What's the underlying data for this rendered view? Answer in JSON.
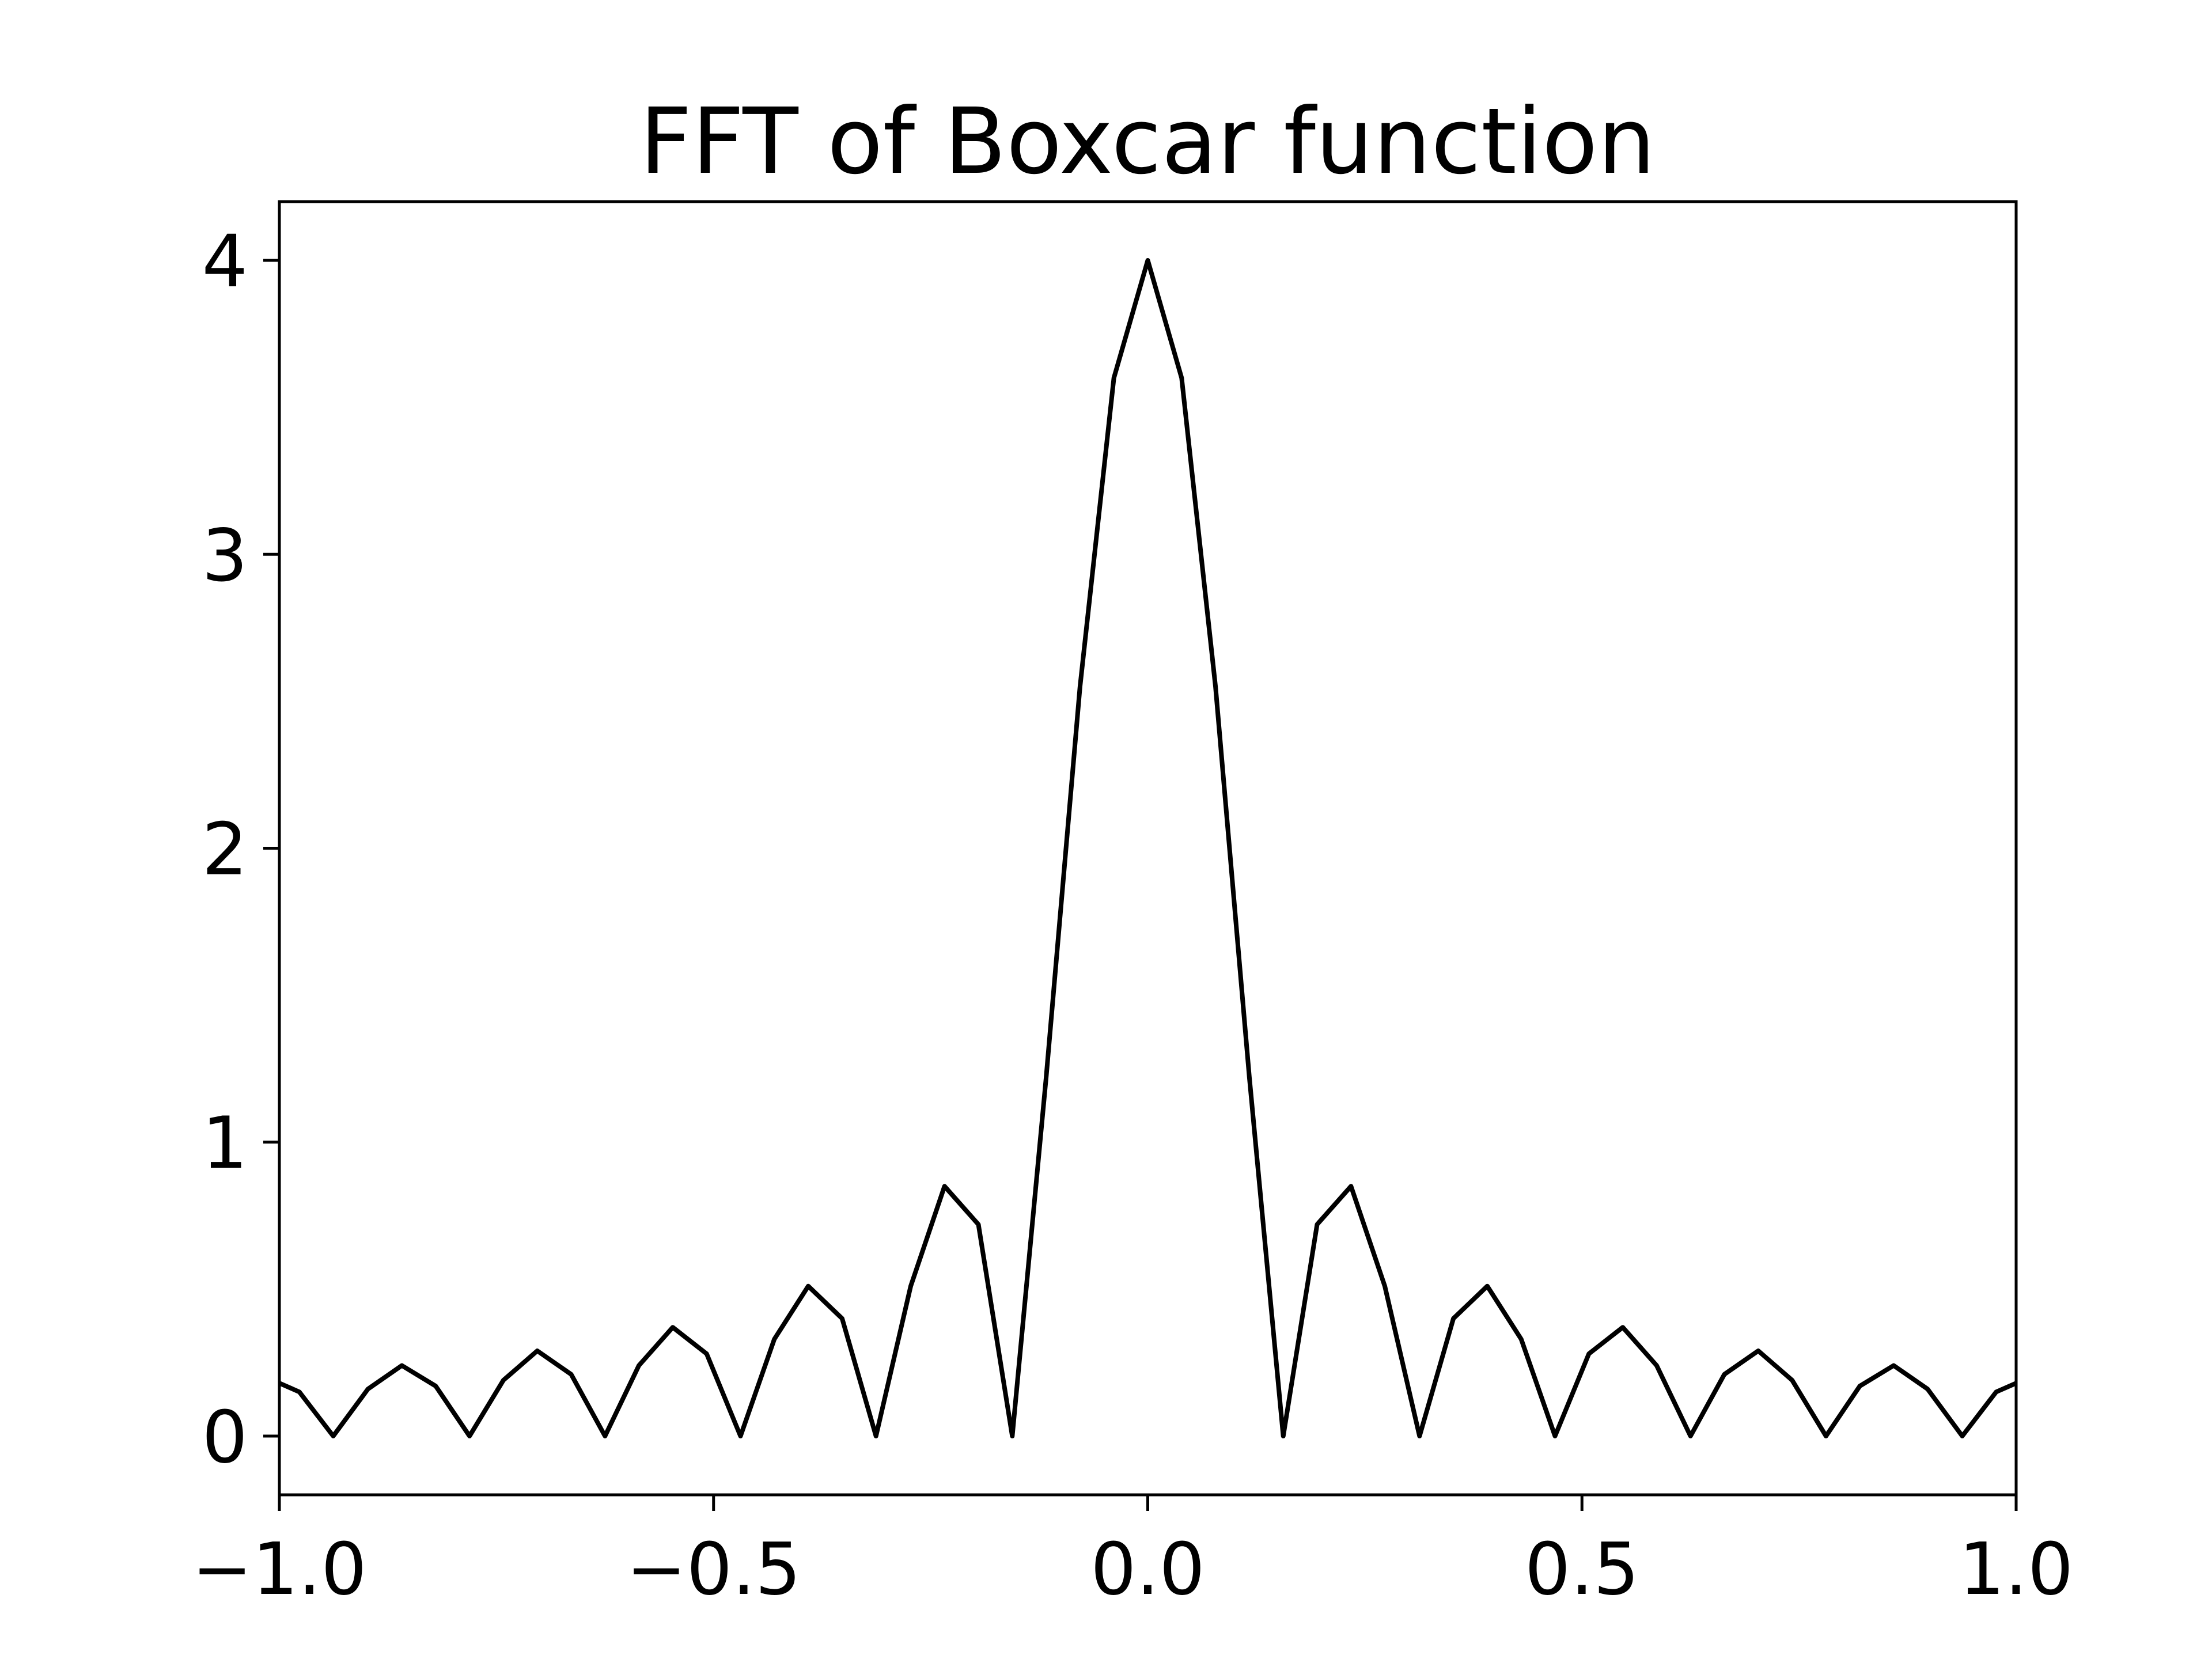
{
  "chart_data": {
    "type": "line",
    "title": "FFT of Boxcar function",
    "xlabel": "",
    "ylabel": "",
    "xlim": [
      -1.0,
      1.0
    ],
    "ylim": [
      -0.2,
      4.2
    ],
    "xticks": [
      -1.0,
      -0.5,
      0.0,
      0.5,
      1.0
    ],
    "xtick_labels": [
      "−1.0",
      "−0.5",
      "0.0",
      "0.5",
      "1.0"
    ],
    "yticks": [
      0,
      1,
      2,
      3,
      4
    ],
    "ytick_labels": [
      "0",
      "1",
      "2",
      "3",
      "4"
    ],
    "grid": false,
    "legend": null,
    "series": [
      {
        "color": "#000000",
        "x": [
          -1.0,
          -0.977,
          -0.938,
          -0.898,
          -0.859,
          -0.82,
          -0.781,
          -0.742,
          -0.703,
          -0.664,
          -0.625,
          -0.586,
          -0.547,
          -0.508,
          -0.469,
          -0.43,
          -0.391,
          -0.352,
          -0.313,
          -0.273,
          -0.234,
          -0.195,
          -0.156,
          -0.117,
          -0.078,
          -0.039,
          0.0,
          0.039,
          0.078,
          0.117,
          0.156,
          0.195,
          0.234,
          0.273,
          0.313,
          0.352,
          0.391,
          0.43,
          0.469,
          0.508,
          0.547,
          0.586,
          0.625,
          0.664,
          0.703,
          0.742,
          0.781,
          0.82,
          0.859,
          0.898,
          0.938,
          0.977,
          1.0
        ],
        "y": [
          0.18,
          0.15,
          0.0,
          0.16,
          0.24,
          0.17,
          0.0,
          0.19,
          0.29,
          0.21,
          0.0,
          0.24,
          0.37,
          0.28,
          0.0,
          0.33,
          0.51,
          0.4,
          0.0,
          0.51,
          0.85,
          0.72,
          0.0,
          1.22,
          2.55,
          3.6,
          4.0,
          3.6,
          2.55,
          1.22,
          0.0,
          0.72,
          0.85,
          0.51,
          0.0,
          0.4,
          0.51,
          0.33,
          0.0,
          0.28,
          0.37,
          0.24,
          0.0,
          0.21,
          0.29,
          0.19,
          0.0,
          0.17,
          0.24,
          0.16,
          0.0,
          0.15,
          0.18
        ]
      }
    ]
  }
}
